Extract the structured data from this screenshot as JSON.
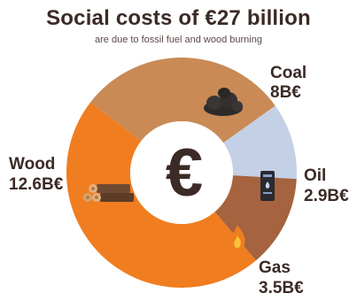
{
  "header": {
    "title": "Social costs of €27 billion",
    "subtitle": "are due to fossil fuel and wood burning"
  },
  "center_symbol": "€",
  "chart_data": {
    "type": "pie",
    "title": "Social costs of €27 billion",
    "subtitle": "are due to fossil fuel and wood burning",
    "unit": "B€",
    "categories": [
      "Coal",
      "Oil",
      "Gas",
      "Wood"
    ],
    "values": [
      8,
      2.9,
      3.5,
      12.6
    ],
    "value_labels": [
      "8B€",
      "2.9B€",
      "3.5B€",
      "12.6B€"
    ],
    "colors": [
      "#c98a56",
      "#c3d0e6",
      "#a5633f",
      "#f07d1f"
    ],
    "icons": [
      "coal-pile-icon",
      "oil-barrel-icon",
      "gas-flame-icon",
      "wood-logs-icon"
    ],
    "hole": "donut",
    "legend": "none"
  }
}
